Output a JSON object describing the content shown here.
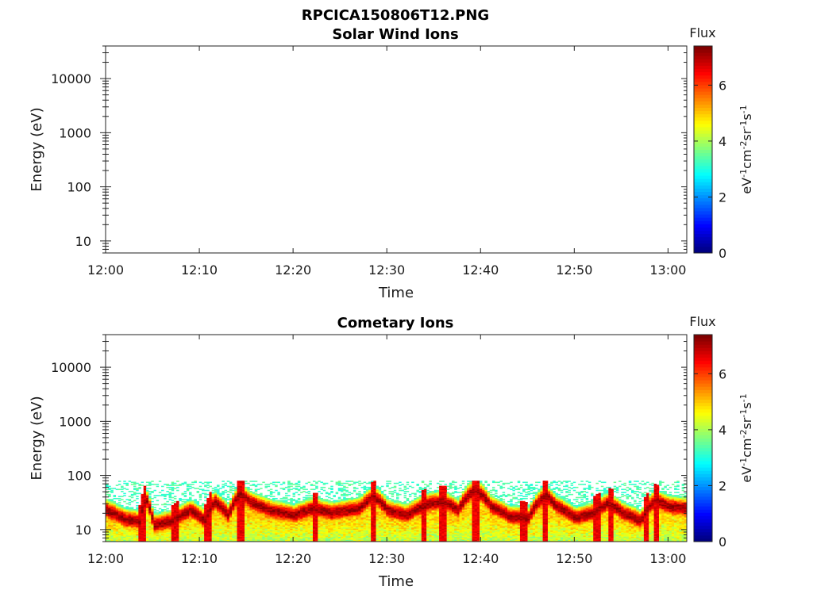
{
  "chart_data": {
    "type": "heatmap",
    "title": "RPCICA150806T12.PNG",
    "panels": [
      {
        "title": "Solar Wind Ions",
        "xlabel": "Time",
        "ylabel": "Energy (eV)",
        "yscale": "log",
        "ylim": [
          6,
          40000
        ],
        "xlim": [
          "12:00",
          "13:02"
        ],
        "x_ticks": [
          "12:00",
          "12:10",
          "12:20",
          "12:30",
          "12:40",
          "12:50",
          "13:00"
        ],
        "y_ticks": [
          "10",
          "100",
          "1000",
          "10000"
        ],
        "colorbar": {
          "label": "Flux",
          "unit": "eV-1cm-2sr-1s-1",
          "range": [
            0,
            7.4
          ],
          "ticks": [
            "0",
            "2",
            "4",
            "6"
          ],
          "colormap": "jet"
        },
        "data": "empty"
      },
      {
        "title": "Cometary Ions",
        "xlabel": "Time",
        "ylabel": "Energy (eV)",
        "yscale": "log",
        "ylim": [
          6,
          40000
        ],
        "xlim": [
          "12:00",
          "13:02"
        ],
        "x_ticks": [
          "12:00",
          "12:10",
          "12:20",
          "12:30",
          "12:40",
          "12:50",
          "13:00"
        ],
        "y_ticks": [
          "10",
          "100",
          "1000",
          "10000"
        ],
        "colorbar": {
          "label": "Flux",
          "unit": "eV-1cm-2sr-1s-1",
          "range": [
            0,
            7.4
          ],
          "ticks": [
            "0",
            "2",
            "4",
            "6"
          ],
          "colormap": "jet"
        },
        "peak_energy_eV": {
          "time_min": [
            0,
            2,
            3.5,
            4.2,
            5,
            7,
            9,
            10.5,
            11.5,
            13,
            14.2,
            15.5,
            17.5,
            20,
            22,
            24,
            27,
            28.5,
            30,
            32,
            34.5,
            36,
            37.5,
            39.3,
            41,
            43,
            45,
            46.8,
            48,
            50,
            52,
            53.5,
            55,
            57,
            58.5,
            60,
            62
          ],
          "values": [
            22,
            15,
            14,
            36,
            12,
            14,
            22,
            14,
            32,
            18,
            44,
            30,
            22,
            18,
            24,
            20,
            24,
            40,
            22,
            18,
            30,
            32,
            22,
            55,
            26,
            17,
            16,
            42,
            26,
            16,
            20,
            30,
            20,
            14,
            34,
            26,
            24
          ]
        },
        "spikes_time_min": [
          3.8,
          7.2,
          10.8,
          14.3,
          22.2,
          28.4,
          33.8,
          35.8,
          39.3,
          44.5,
          46.8,
          52.3,
          53.8,
          57.5,
          58.6
        ],
        "noise_upper_eV": 80
      }
    ]
  }
}
